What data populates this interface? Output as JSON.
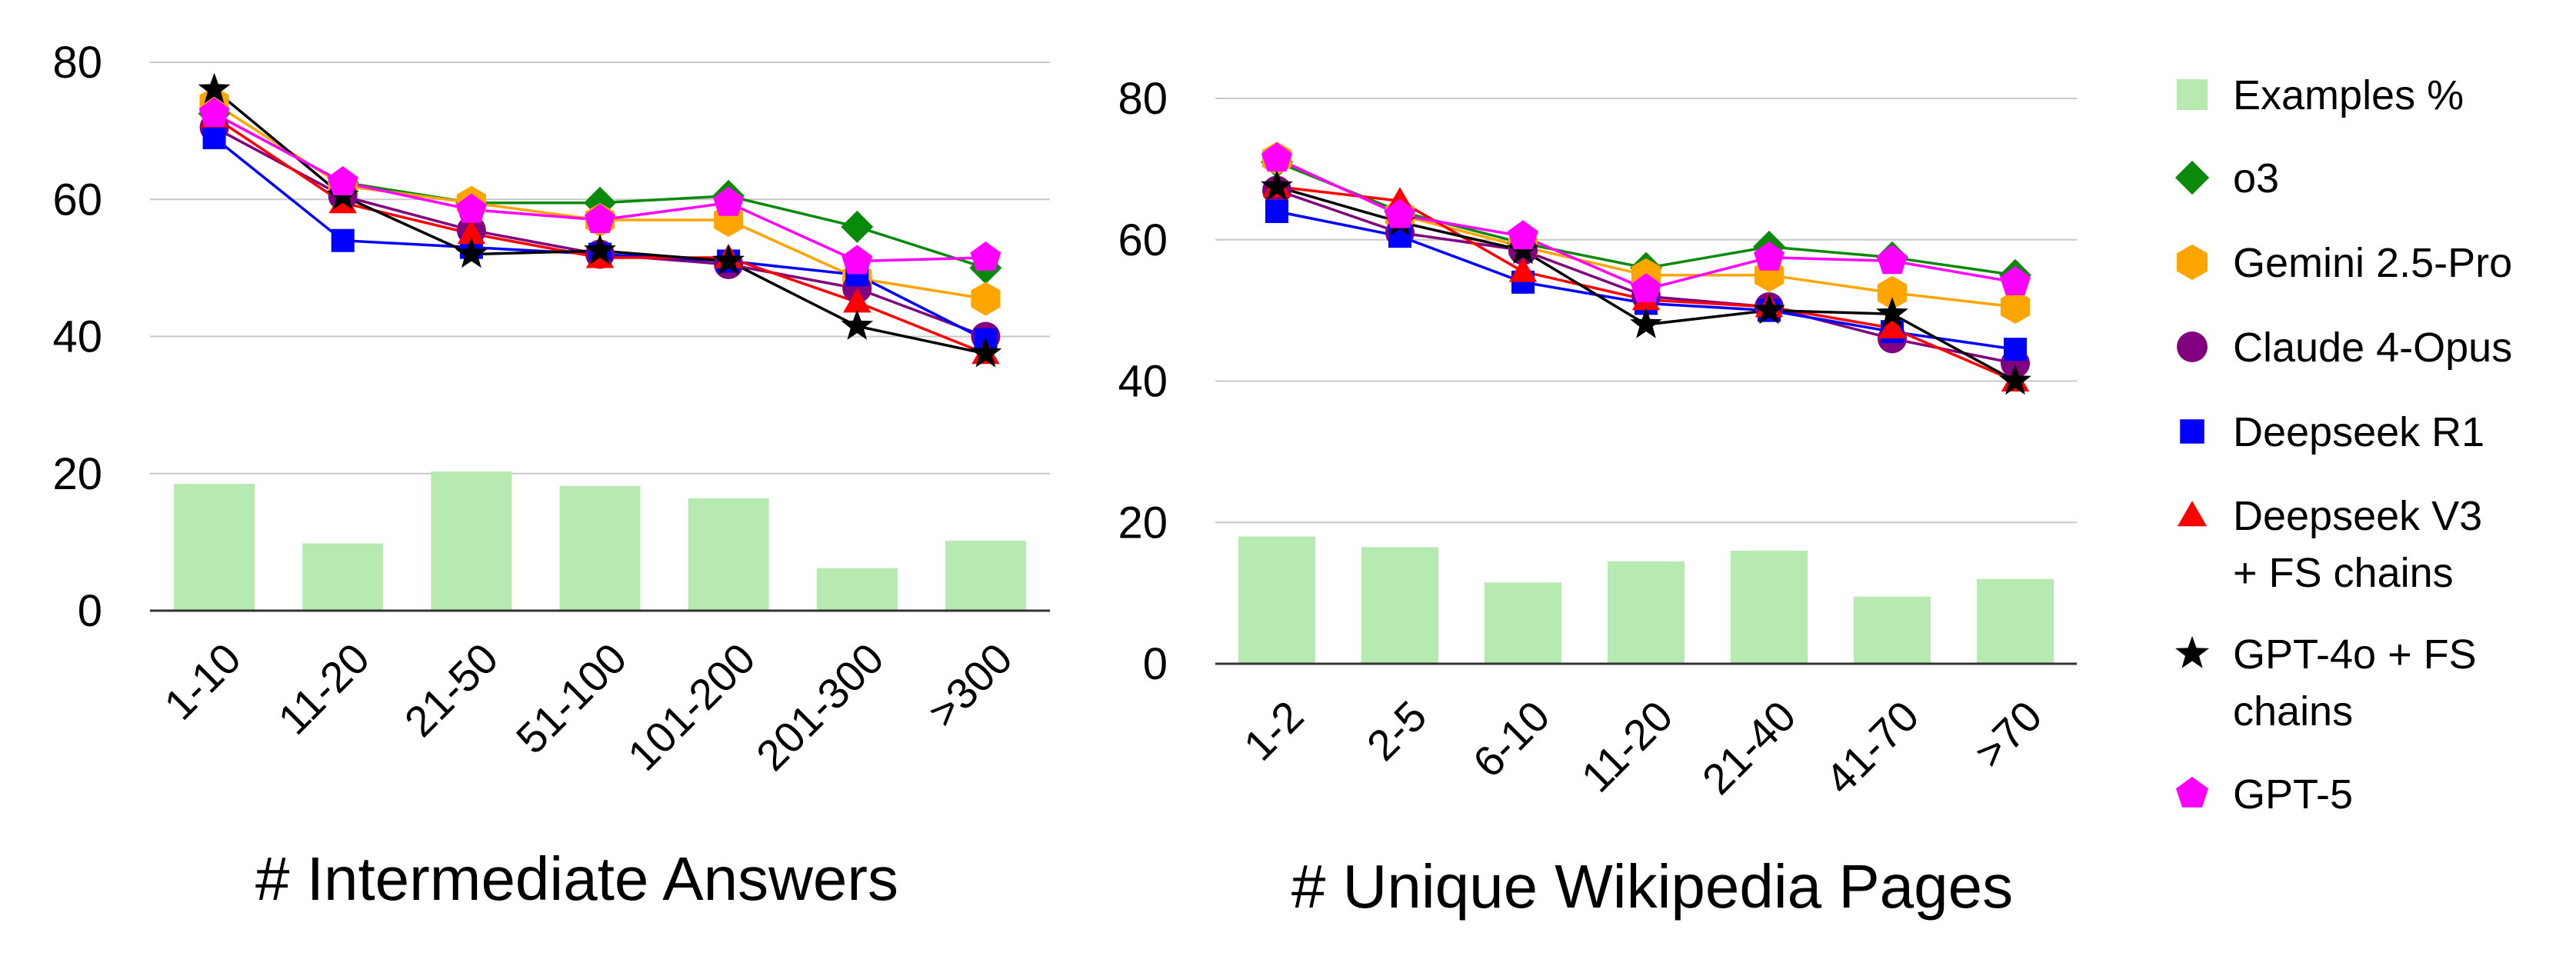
{
  "series_styles": [
    {
      "name": "o3",
      "color": "#0a8a0a",
      "marker": "diamond"
    },
    {
      "name": "Gemini 2.5-Pro",
      "color": "#ffa500",
      "marker": "hexagon"
    },
    {
      "name": "Claude 4-Opus",
      "color": "#800080",
      "marker": "circle"
    },
    {
      "name": "Deepseek R1",
      "color": "#0000ff",
      "marker": "square"
    },
    {
      "name": "Deepseek V3 + FS chains",
      "color": "#ff0000",
      "marker": "triangle"
    },
    {
      "name": "GPT-4o + FS chains",
      "color": "#000000",
      "marker": "star"
    },
    {
      "name": "GPT-5",
      "color": "#ff00ff",
      "marker": "pentagon"
    }
  ],
  "bar_color": "#b7eab1",
  "legend": {
    "placement": "right",
    "entries": [
      {
        "label": "Examples %",
        "marker": "bar-square",
        "color": "#b7eab1"
      },
      {
        "label": "o3",
        "marker": "diamond",
        "color": "#0a8a0a"
      },
      {
        "label": "Gemini 2.5-Pro",
        "marker": "hexagon",
        "color": "#ffa500"
      },
      {
        "label": "Claude 4-Opus",
        "marker": "circle",
        "color": "#800080"
      },
      {
        "label": "Deepseek R1",
        "marker": "square",
        "color": "#0000ff"
      },
      {
        "label": "Deepseek V3",
        "label2": "+ FS chains",
        "marker": "triangle",
        "color": "#ff0000"
      },
      {
        "label": "GPT-4o + FS",
        "label2": "chains",
        "marker": "star",
        "color": "#000000"
      },
      {
        "label": "GPT-5",
        "marker": "pentagon",
        "color": "#ff00ff"
      }
    ]
  },
  "chart_data": [
    {
      "type": "bar+line",
      "xlabel": "# Intermediate Answers",
      "ylim": [
        0,
        80
      ],
      "yticks": [
        0,
        20,
        40,
        60,
        80
      ],
      "grid": true,
      "categories": [
        "1-10",
        "11-20",
        "21-50",
        "51-100",
        "101-200",
        "201-300",
        ">300"
      ],
      "bars": {
        "name": "Examples %",
        "values": [
          18.5,
          9.8,
          20.3,
          18.2,
          16.4,
          6.2,
          10.2
        ]
      },
      "series": [
        {
          "name": "o3",
          "values": [
            72.5,
            62.5,
            59.5,
            59.5,
            60.5,
            56,
            50
          ]
        },
        {
          "name": "Gemini 2.5-Pro",
          "values": [
            74,
            62,
            59.5,
            57,
            57,
            48.5,
            45.5
          ]
        },
        {
          "name": "Claude 4-Opus",
          "values": [
            70.5,
            60.5,
            55.5,
            52,
            50.5,
            47,
            40
          ]
        },
        {
          "name": "Deepseek R1",
          "values": [
            69,
            54,
            53,
            52,
            51,
            49,
            39.5
          ]
        },
        {
          "name": "Deepseek V3 + FS chains",
          "values": [
            72,
            59.5,
            55,
            51.5,
            51.5,
            45,
            37.5
          ]
        },
        {
          "name": "GPT-4o + FS chains",
          "values": [
            76,
            60.5,
            52,
            52.5,
            51,
            41.5,
            37.5
          ]
        },
        {
          "name": "GPT-5",
          "values": [
            72.5,
            62.5,
            58.5,
            57,
            59.5,
            51,
            51.5
          ]
        }
      ]
    },
    {
      "type": "bar+line",
      "xlabel": "# Unique Wikipedia Pages",
      "ylim": [
        0,
        80
      ],
      "yticks": [
        0,
        20,
        40,
        60,
        80
      ],
      "grid": true,
      "categories": [
        "1-2",
        "2-5",
        "6-10",
        "11-20",
        "21-40",
        "41-70",
        ">70"
      ],
      "bars": {
        "name": "Examples %",
        "values": [
          18,
          16.5,
          11.5,
          14.5,
          16,
          9.5,
          12
        ]
      },
      "series": [
        {
          "name": "o3",
          "values": [
            71,
            64,
            59.5,
            56,
            59,
            57.5,
            55
          ]
        },
        {
          "name": "Gemini 2.5-Pro",
          "values": [
            71.5,
            63.5,
            59,
            55,
            55,
            52.5,
            50.5
          ]
        },
        {
          "name": "Claude 4-Opus",
          "values": [
            67,
            61,
            58.5,
            52,
            50.5,
            46,
            42.5
          ]
        },
        {
          "name": "Deepseek R1",
          "values": [
            64,
            60.5,
            54,
            51,
            50,
            47,
            44.5
          ]
        },
        {
          "name": "Deepseek V3 + FS chains",
          "values": [
            67.5,
            65.5,
            55.5,
            51.5,
            50.5,
            47.5,
            40
          ]
        },
        {
          "name": "GPT-4o + FS chains",
          "values": [
            67.5,
            62.5,
            58.5,
            48,
            50,
            49.5,
            40
          ]
        },
        {
          "name": "GPT-5",
          "values": [
            71.5,
            63.5,
            60.5,
            53,
            57.5,
            57,
            54
          ]
        }
      ]
    }
  ]
}
